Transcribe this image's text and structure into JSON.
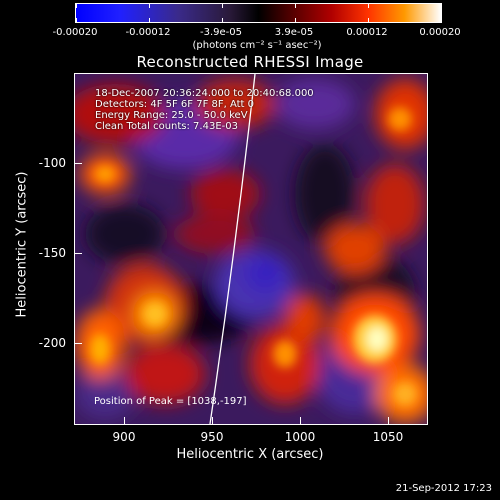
{
  "colorbar": {
    "ticks": [
      "-0.00020",
      "-0.00012",
      "-3.9e-05",
      "3.9e-05",
      "0.00012",
      "0.00020"
    ],
    "units": "(photons cm⁻² s⁻¹ asec⁻²)"
  },
  "title": "Reconstructed RHESSI Image",
  "info": {
    "time": "18-Dec-2007 20:36:24.000 to 20:40:68.000",
    "detectors": "Detectors: 4F 5F 6F 7F 8F, Att 0",
    "energy": "Energy Range: 25.0 - 50.0 keV",
    "clean": "Clean     Total counts: 7.43E-03"
  },
  "peak": "Position of Peak = [1038,-197]",
  "axes": {
    "xlabel": "Heliocentric X (arcsec)",
    "ylabel": "Heliocentric Y (arcsec)",
    "xticks": [
      "900",
      "950",
      "1000",
      "1050"
    ],
    "yticks": [
      "-100",
      "-150",
      "-200"
    ]
  },
  "timestamp": "21-Sep-2012 17:23",
  "colors": {
    "limb": "#ffffff",
    "frame": "#ffffff",
    "background": "#000000"
  }
}
